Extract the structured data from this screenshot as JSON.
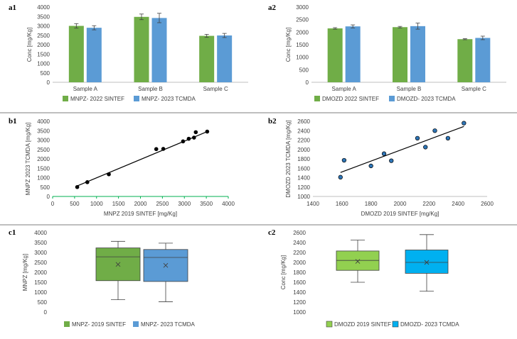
{
  "colors": {
    "green": "#70ad47",
    "blue": "#5b9bd5",
    "c2_green": "#92d050",
    "c2_blue": "#00b0f0",
    "scatter_b2": "#2e75b6",
    "axis_green": "#00b050"
  },
  "chart_data": [
    {
      "id": "a1",
      "panel_label": "a1",
      "type": "bar",
      "ylabel": "Conc [mg/Kg]",
      "categories": [
        "Sample A",
        "Sample B",
        "Sample C"
      ],
      "ylim": [
        0,
        4000
      ],
      "yticks": [
        "0",
        "500",
        "1000",
        "1500",
        "2000",
        "2500",
        "3000",
        "3500",
        "4000"
      ],
      "series": [
        {
          "name": "MNPZ- 2022 SINTEF",
          "color": "#70ad47",
          "values": [
            3000,
            3480,
            2470
          ],
          "errors": [
            120,
            150,
            80
          ]
        },
        {
          "name": "MNPZ- 2023 TCMDA",
          "color": "#5b9bd5",
          "values": [
            2900,
            3420,
            2490
          ],
          "errors": [
            110,
            250,
            110
          ]
        }
      ]
    },
    {
      "id": "a2",
      "panel_label": "a2",
      "type": "bar",
      "ylabel": "Conc [mg/Kg]",
      "categories": [
        "Sample A",
        "Sample B",
        "Sample C"
      ],
      "ylim": [
        0,
        3000
      ],
      "yticks": [
        "0",
        "500",
        "1000",
        "1500",
        "2000",
        "2500",
        "3000"
      ],
      "series": [
        {
          "name": "DMOZD 2022 SINTEF",
          "color": "#70ad47",
          "values": [
            2150,
            2200,
            1720
          ],
          "errors": [
            30,
            30,
            20
          ]
        },
        {
          "name": "DMOZD- 2023 TCMDA",
          "color": "#5b9bd5",
          "values": [
            2230,
            2240,
            1770
          ],
          "errors": [
            60,
            120,
            70
          ]
        }
      ]
    },
    {
      "id": "b1",
      "panel_label": "b1",
      "type": "scatter",
      "xlabel": "MNPZ 2019 SINTEF [mg/Kg]",
      "ylabel": "MNPZ 2023 TCMDA [mg/Kg]",
      "xlim": [
        0,
        4000
      ],
      "ylim": [
        0,
        4000
      ],
      "xticks": [
        "0",
        "500",
        "1000",
        "1500",
        "2000",
        "2500",
        "3000",
        "3500",
        "4000"
      ],
      "yticks": [
        "0",
        "500",
        "1000",
        "1500",
        "2000",
        "2500",
        "3000",
        "3500",
        "4000"
      ],
      "points": [
        [
          560,
          500
        ],
        [
          790,
          760
        ],
        [
          1280,
          1180
        ],
        [
          2360,
          2520
        ],
        [
          2520,
          2530
        ],
        [
          2970,
          2930
        ],
        [
          3100,
          3070
        ],
        [
          3220,
          3130
        ],
        [
          3260,
          3420
        ],
        [
          3520,
          3450
        ]
      ],
      "trendline": [
        [
          560,
          560
        ],
        [
          3520,
          3450
        ]
      ],
      "marker_color": "#000000"
    },
    {
      "id": "b2",
      "panel_label": "b2",
      "type": "scatter",
      "xlabel": "DMOZD 2019 SINTEF [mg/Kg]",
      "ylabel": "DMOZD 2023 TCMDA [mg/Kg]",
      "xlim": [
        1400,
        2600
      ],
      "ylim": [
        1000,
        2600
      ],
      "xticks": [
        "1400",
        "1600",
        "1800",
        "2000",
        "2200",
        "2400",
        "2600"
      ],
      "yticks": [
        "1000",
        "1200",
        "1400",
        "1600",
        "1800",
        "2000",
        "2200",
        "2400",
        "2600"
      ],
      "points": [
        [
          1590,
          1410
        ],
        [
          1615,
          1770
        ],
        [
          1800,
          1650
        ],
        [
          1890,
          1910
        ],
        [
          1940,
          1760
        ],
        [
          2120,
          2240
        ],
        [
          2175,
          2050
        ],
        [
          2240,
          2400
        ],
        [
          2330,
          2240
        ],
        [
          2440,
          2560
        ]
      ],
      "trendline": [
        [
          1590,
          1510
        ],
        [
          2440,
          2490
        ]
      ],
      "marker_color": "#2e75b6"
    },
    {
      "id": "c1",
      "panel_label": "c1",
      "type": "box",
      "ylabel": "MNPZ [mg/Kg]",
      "ylim": [
        0,
        4000
      ],
      "yticks": [
        "0",
        "500",
        "1000",
        "1500",
        "2000",
        "2500",
        "3000",
        "3500",
        "4000"
      ],
      "series": [
        {
          "name": "MNPZ- 2019 SINTEF",
          "color": "#70ad47",
          "min": 620,
          "q1": 1580,
          "median": 2780,
          "q3": 3230,
          "max": 3560,
          "mean": 2400
        },
        {
          "name": "MNPZ- 2023 TCMDA",
          "color": "#5b9bd5",
          "min": 520,
          "q1": 1540,
          "median": 2750,
          "q3": 3150,
          "max": 3470,
          "mean": 2350
        }
      ]
    },
    {
      "id": "c2",
      "panel_label": "c2",
      "type": "box",
      "ylabel": "Conc [mg/Kg]",
      "ylim": [
        1000,
        2600
      ],
      "yticks": [
        "1000",
        "1200",
        "1400",
        "1600",
        "1800",
        "2000",
        "2200",
        "2400",
        "2600"
      ],
      "series": [
        {
          "name": "DMOZD 2019 SINTEF",
          "color": "#92d050",
          "min": 1600,
          "q1": 1840,
          "median": 2040,
          "q3": 2230,
          "max": 2450,
          "mean": 2020
        },
        {
          "name": "DMOZD- 2023 TCMDA",
          "color": "#00b0f0",
          "min": 1420,
          "q1": 1780,
          "median": 2000,
          "q3": 2250,
          "max": 2560,
          "mean": 2000
        }
      ]
    }
  ]
}
